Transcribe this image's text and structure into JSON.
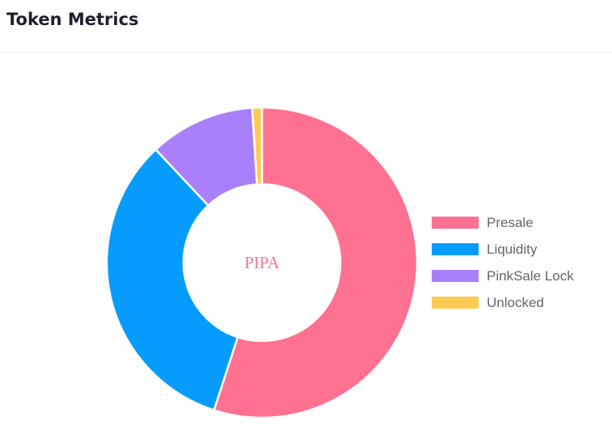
{
  "header": {
    "title": "Token Metrics"
  },
  "chart_data": {
    "type": "pie",
    "variant": "doughnut",
    "center_label": "PIPA",
    "center_label_color": "#ff7190",
    "legend_position": "right",
    "slices": [
      {
        "label": "Presale",
        "value": 55,
        "color": "#ff7190"
      },
      {
        "label": "Liquidity",
        "value": 33,
        "color": "#069cfd"
      },
      {
        "label": "PinkSale Lock",
        "value": 11,
        "color": "#a980fa"
      },
      {
        "label": "Unlocked",
        "value": 1,
        "color": "#fdca53"
      }
    ]
  }
}
